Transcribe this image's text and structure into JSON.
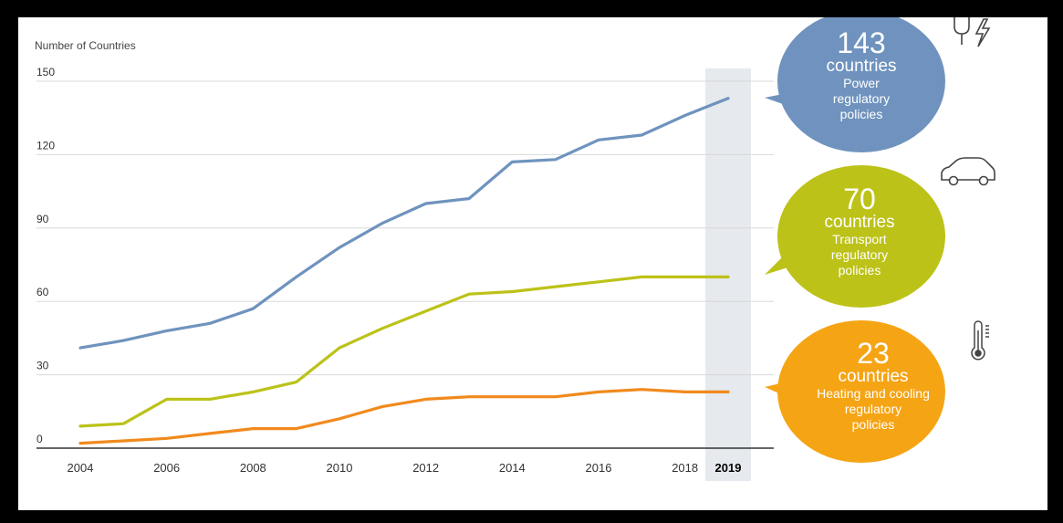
{
  "chart_data": {
    "type": "line",
    "ylabel": "Number of Countries",
    "x": [
      2004,
      2005,
      2006,
      2007,
      2008,
      2009,
      2010,
      2011,
      2012,
      2013,
      2014,
      2015,
      2016,
      2017,
      2018,
      2019
    ],
    "xticks": [
      "2004",
      "2006",
      "2008",
      "2010",
      "2012",
      "2014",
      "2016",
      "2018",
      "2019"
    ],
    "yticks": [
      "0",
      "30",
      "60",
      "90",
      "120",
      "150"
    ],
    "ylim": [
      0,
      150
    ],
    "highlight_x": 2019,
    "grid": true,
    "series": [
      {
        "key": "power",
        "color": "#6f93be",
        "values": [
          41,
          44,
          48,
          51,
          57,
          70,
          82,
          92,
          100,
          102,
          117,
          118,
          126,
          128,
          136,
          143
        ]
      },
      {
        "key": "transport",
        "color": "#bcc218",
        "values": [
          9,
          10,
          20,
          20,
          23,
          27,
          41,
          49,
          56,
          63,
          64,
          66,
          68,
          70,
          70,
          70
        ]
      },
      {
        "key": "heating",
        "color": "#f18a1d",
        "values": [
          2,
          3,
          4,
          6,
          8,
          8,
          12,
          17,
          20,
          21,
          21,
          21,
          23,
          24,
          23,
          23
        ]
      }
    ]
  },
  "callouts": [
    {
      "number": "143",
      "unit": "countries",
      "lines": [
        "Power",
        "regulatory",
        "policies"
      ],
      "color": "#6f93be",
      "icon": "plug-bolt-icon"
    },
    {
      "number": "70",
      "unit": "countries",
      "lines": [
        "Transport",
        "regulatory",
        "policies"
      ],
      "color": "#bcc218",
      "icon": "car-icon"
    },
    {
      "number": "23",
      "unit": "countries",
      "lines": [
        "Heating and cooling",
        "regulatory",
        "policies"
      ],
      "color": "#f5a414",
      "icon": "thermometer-icon"
    }
  ]
}
